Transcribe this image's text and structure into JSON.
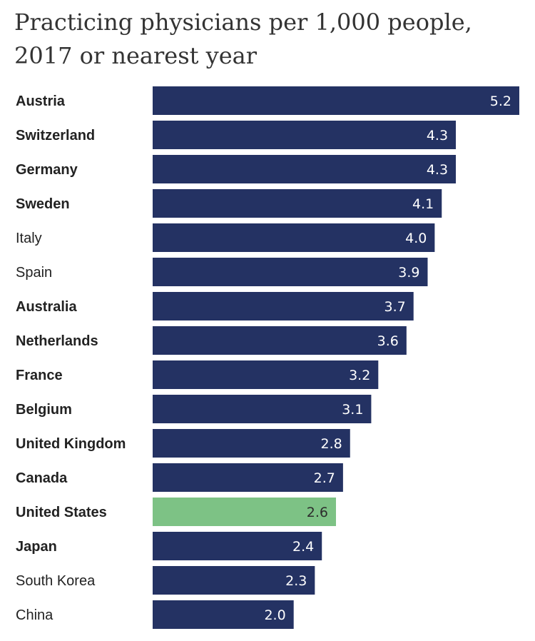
{
  "colors": {
    "bar": "#243263",
    "highlight": "#7dc285",
    "value_text_light": "#ffffff",
    "value_text_dark": "#2d2d2d"
  },
  "chart_data": {
    "type": "bar",
    "orientation": "horizontal",
    "title": "Practicing physicians per 1,000 people, 2017 or nearest year",
    "categories": [
      "Austria",
      "Switzerland",
      "Germany",
      "Sweden",
      "Italy",
      "Spain",
      "Australia",
      "Netherlands",
      "France",
      "Belgium",
      "United Kingdom",
      "Canada",
      "United States",
      "Japan",
      "South Korea",
      "China"
    ],
    "values": [
      5.2,
      4.3,
      4.3,
      4.1,
      4.0,
      3.9,
      3.7,
      3.6,
      3.2,
      3.1,
      2.8,
      2.7,
      2.6,
      2.4,
      2.3,
      2.0
    ],
    "value_labels": [
      "5.2",
      "4.3",
      "4.3",
      "4.1",
      "4.0",
      "3.9",
      "3.7",
      "3.6",
      "3.2",
      "3.1",
      "2.8",
      "2.7",
      "2.6",
      "2.4",
      "2.3",
      "2.0"
    ],
    "bold_categories": [
      "Austria",
      "Switzerland",
      "Germany",
      "Sweden",
      "Australia",
      "Netherlands",
      "France",
      "Belgium",
      "United Kingdom",
      "Canada",
      "United States",
      "Japan"
    ],
    "highlight_category": "United States",
    "xlim": [
      0,
      5.2
    ],
    "grid": false,
    "legend": "none"
  }
}
